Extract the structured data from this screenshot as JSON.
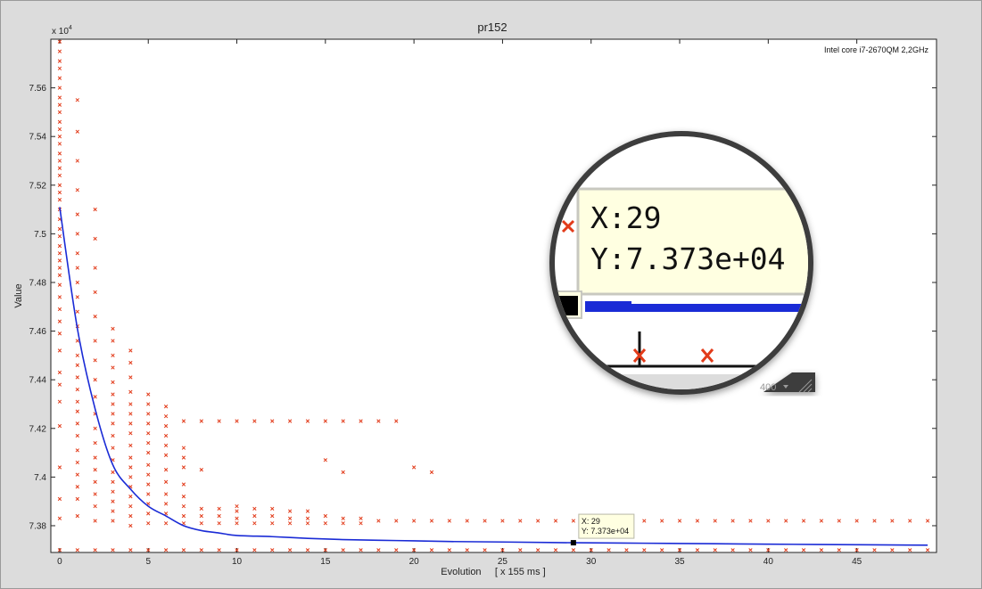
{
  "chart_data": {
    "type": "scatter",
    "title": "pr152",
    "xlabel": "Evolution     [ x 155 ms ]",
    "ylabel": "Value",
    "y_exponent_label": "x 10",
    "y_exponent_power": "4",
    "annotation": "Intel core i7-2670QM 2,2GHz",
    "xlim": [
      -0.5,
      49.5
    ],
    "ylim": [
      73690,
      75800
    ],
    "x_ticks": [
      0,
      5,
      10,
      15,
      20,
      25,
      30,
      35,
      40,
      45
    ],
    "y_ticks": [
      73800,
      74000,
      74200,
      74400,
      74600,
      74800,
      75000,
      75200,
      75400,
      75600
    ],
    "y_tick_labels": [
      "7.38",
      "7.4",
      "7.42",
      "7.44",
      "7.46",
      "7.48",
      "7.5",
      "7.52",
      "7.54",
      "7.56"
    ],
    "grid": false,
    "series": [
      {
        "role": "mean",
        "color": "#1a2bd6",
        "x": [
          0,
          1,
          2,
          3,
          4,
          5,
          6,
          7,
          8,
          9,
          10,
          12,
          14,
          16,
          18,
          20,
          22,
          25,
          29,
          33,
          37,
          40,
          45,
          49
        ],
        "y": [
          75110,
          74610,
          74280,
          74050,
          73950,
          73880,
          73840,
          73800,
          73780,
          73770,
          73760,
          73755,
          73748,
          73743,
          73740,
          73738,
          73735,
          73733,
          73730,
          73728,
          73726,
          73724,
          73722,
          73720
        ]
      },
      {
        "role": "samples",
        "color": "#e23b1a",
        "marker": "x",
        "points": [
          [
            0,
            75790
          ],
          [
            0,
            75750
          ],
          [
            0,
            75710
          ],
          [
            0,
            75680
          ],
          [
            0,
            75640
          ],
          [
            0,
            75600
          ],
          [
            0,
            75560
          ],
          [
            0,
            75530
          ],
          [
            0,
            75500
          ],
          [
            0,
            75460
          ],
          [
            0,
            75430
          ],
          [
            0,
            75400
          ],
          [
            0,
            75370
          ],
          [
            0,
            75330
          ],
          [
            0,
            75300
          ],
          [
            0,
            75270
          ],
          [
            0,
            75240
          ],
          [
            0,
            75200
          ],
          [
            0,
            75170
          ],
          [
            0,
            75140
          ],
          [
            0,
            75100
          ],
          [
            0,
            75060
          ],
          [
            0,
            75020
          ],
          [
            0,
            74990
          ],
          [
            0,
            74950
          ],
          [
            0,
            74920
          ],
          [
            0,
            74890
          ],
          [
            0,
            74860
          ],
          [
            0,
            74830
          ],
          [
            0,
            74790
          ],
          [
            0,
            74740
          ],
          [
            0,
            74690
          ],
          [
            0,
            74640
          ],
          [
            0,
            74590
          ],
          [
            0,
            74520
          ],
          [
            0,
            74430
          ],
          [
            0,
            74380
          ],
          [
            0,
            74310
          ],
          [
            0,
            74210
          ],
          [
            0,
            74040
          ],
          [
            0,
            73910
          ],
          [
            0,
            73830
          ],
          [
            0,
            73700
          ],
          [
            1,
            75550
          ],
          [
            1,
            75420
          ],
          [
            1,
            75300
          ],
          [
            1,
            75180
          ],
          [
            1,
            75080
          ],
          [
            1,
            75000
          ],
          [
            1,
            74920
          ],
          [
            1,
            74860
          ],
          [
            1,
            74800
          ],
          [
            1,
            74740
          ],
          [
            1,
            74680
          ],
          [
            1,
            74620
          ],
          [
            1,
            74560
          ],
          [
            1,
            74500
          ],
          [
            1,
            74460
          ],
          [
            1,
            74410
          ],
          [
            1,
            74360
          ],
          [
            1,
            74310
          ],
          [
            1,
            74270
          ],
          [
            1,
            74220
          ],
          [
            1,
            74170
          ],
          [
            1,
            74110
          ],
          [
            1,
            74060
          ],
          [
            1,
            74010
          ],
          [
            1,
            73960
          ],
          [
            1,
            73910
          ],
          [
            1,
            73840
          ],
          [
            1,
            73700
          ],
          [
            2,
            75100
          ],
          [
            2,
            74980
          ],
          [
            2,
            74860
          ],
          [
            2,
            74760
          ],
          [
            2,
            74660
          ],
          [
            2,
            74560
          ],
          [
            2,
            74480
          ],
          [
            2,
            74400
          ],
          [
            2,
            74330
          ],
          [
            2,
            74260
          ],
          [
            2,
            74200
          ],
          [
            2,
            74140
          ],
          [
            2,
            74080
          ],
          [
            2,
            74030
          ],
          [
            2,
            73980
          ],
          [
            2,
            73930
          ],
          [
            2,
            73880
          ],
          [
            2,
            73820
          ],
          [
            2,
            73700
          ],
          [
            3,
            74610
          ],
          [
            3,
            74560
          ],
          [
            3,
            74500
          ],
          [
            3,
            74450
          ],
          [
            3,
            74390
          ],
          [
            3,
            74340
          ],
          [
            3,
            74300
          ],
          [
            3,
            74260
          ],
          [
            3,
            74220
          ],
          [
            3,
            74170
          ],
          [
            3,
            74120
          ],
          [
            3,
            74070
          ],
          [
            3,
            74020
          ],
          [
            3,
            73980
          ],
          [
            3,
            73940
          ],
          [
            3,
            73900
          ],
          [
            3,
            73860
          ],
          [
            3,
            73820
          ],
          [
            3,
            73700
          ],
          [
            4,
            74520
          ],
          [
            4,
            74470
          ],
          [
            4,
            74410
          ],
          [
            4,
            74350
          ],
          [
            4,
            74300
          ],
          [
            4,
            74260
          ],
          [
            4,
            74220
          ],
          [
            4,
            74180
          ],
          [
            4,
            74130
          ],
          [
            4,
            74080
          ],
          [
            4,
            74040
          ],
          [
            4,
            74000
          ],
          [
            4,
            73960
          ],
          [
            4,
            73920
          ],
          [
            4,
            73880
          ],
          [
            4,
            73840
          ],
          [
            4,
            73800
          ],
          [
            4,
            73700
          ],
          [
            5,
            74340
          ],
          [
            5,
            74300
          ],
          [
            5,
            74260
          ],
          [
            5,
            74220
          ],
          [
            5,
            74180
          ],
          [
            5,
            74140
          ],
          [
            5,
            74100
          ],
          [
            5,
            74050
          ],
          [
            5,
            74010
          ],
          [
            5,
            73970
          ],
          [
            5,
            73930
          ],
          [
            5,
            73890
          ],
          [
            5,
            73850
          ],
          [
            5,
            73810
          ],
          [
            5,
            73700
          ],
          [
            6,
            74290
          ],
          [
            6,
            74250
          ],
          [
            6,
            74210
          ],
          [
            6,
            74170
          ],
          [
            6,
            74130
          ],
          [
            6,
            74090
          ],
          [
            6,
            74030
          ],
          [
            6,
            73980
          ],
          [
            6,
            73930
          ],
          [
            6,
            73890
          ],
          [
            6,
            73850
          ],
          [
            6,
            73810
          ],
          [
            6,
            73700
          ],
          [
            7,
            74230
          ],
          [
            7,
            74120
          ],
          [
            7,
            74080
          ],
          [
            7,
            74040
          ],
          [
            7,
            73970
          ],
          [
            7,
            73920
          ],
          [
            7,
            73880
          ],
          [
            7,
            73840
          ],
          [
            7,
            73810
          ],
          [
            7,
            73700
          ],
          [
            8,
            74230
          ],
          [
            8,
            74030
          ],
          [
            8,
            73870
          ],
          [
            8,
            73840
          ],
          [
            8,
            73810
          ],
          [
            8,
            73700
          ],
          [
            9,
            74230
          ],
          [
            9,
            73870
          ],
          [
            9,
            73840
          ],
          [
            9,
            73810
          ],
          [
            9,
            73700
          ],
          [
            10,
            74230
          ],
          [
            10,
            73880
          ],
          [
            10,
            73860
          ],
          [
            10,
            73830
          ],
          [
            10,
            73810
          ],
          [
            10,
            73700
          ],
          [
            11,
            74230
          ],
          [
            11,
            73870
          ],
          [
            11,
            73840
          ],
          [
            11,
            73810
          ],
          [
            11,
            73700
          ],
          [
            12,
            74230
          ],
          [
            12,
            73870
          ],
          [
            12,
            73840
          ],
          [
            12,
            73810
          ],
          [
            12,
            73700
          ],
          [
            13,
            74230
          ],
          [
            13,
            73860
          ],
          [
            13,
            73830
          ],
          [
            13,
            73810
          ],
          [
            13,
            73700
          ],
          [
            14,
            74230
          ],
          [
            14,
            73860
          ],
          [
            14,
            73830
          ],
          [
            14,
            73810
          ],
          [
            14,
            73700
          ],
          [
            15,
            74230
          ],
          [
            15,
            74070
          ],
          [
            15,
            73840
          ],
          [
            15,
            73810
          ],
          [
            15,
            73700
          ],
          [
            16,
            74230
          ],
          [
            16,
            74020
          ],
          [
            16,
            73830
          ],
          [
            16,
            73810
          ],
          [
            16,
            73700
          ],
          [
            17,
            74230
          ],
          [
            17,
            73830
          ],
          [
            17,
            73810
          ],
          [
            17,
            73700
          ],
          [
            18,
            74230
          ],
          [
            18,
            73820
          ],
          [
            18,
            73700
          ],
          [
            19,
            74230
          ],
          [
            19,
            73820
          ],
          [
            19,
            73700
          ],
          [
            20,
            74040
          ],
          [
            20,
            73820
          ],
          [
            20,
            73700
          ],
          [
            21,
            74020
          ],
          [
            21,
            73820
          ],
          [
            21,
            73700
          ],
          [
            22,
            73820
          ],
          [
            22,
            73700
          ],
          [
            23,
            73820
          ],
          [
            23,
            73700
          ],
          [
            24,
            73820
          ],
          [
            24,
            73700
          ],
          [
            25,
            73820
          ],
          [
            25,
            73700
          ],
          [
            26,
            73820
          ],
          [
            26,
            73700
          ],
          [
            27,
            73820
          ],
          [
            27,
            73700
          ],
          [
            28,
            73820
          ],
          [
            28,
            73700
          ],
          [
            29,
            73820
          ],
          [
            29,
            73700
          ],
          [
            30,
            73820
          ],
          [
            30,
            73700
          ],
          [
            31,
            73820
          ],
          [
            31,
            73700
          ],
          [
            32,
            73820
          ],
          [
            32,
            73700
          ],
          [
            33,
            73820
          ],
          [
            33,
            73700
          ],
          [
            34,
            73820
          ],
          [
            34,
            73700
          ],
          [
            35,
            73820
          ],
          [
            35,
            73700
          ],
          [
            36,
            73820
          ],
          [
            36,
            73700
          ],
          [
            37,
            73820
          ],
          [
            37,
            73700
          ],
          [
            38,
            73820
          ],
          [
            38,
            73700
          ],
          [
            39,
            73820
          ],
          [
            39,
            73700
          ],
          [
            40,
            73820
          ],
          [
            40,
            73700
          ],
          [
            41,
            73820
          ],
          [
            41,
            73700
          ],
          [
            42,
            73820
          ],
          [
            42,
            73700
          ],
          [
            43,
            73820
          ],
          [
            43,
            73700
          ],
          [
            44,
            73820
          ],
          [
            44,
            73700
          ],
          [
            45,
            73820
          ],
          [
            45,
            73700
          ],
          [
            46,
            73820
          ],
          [
            46,
            73700
          ],
          [
            47,
            73820
          ],
          [
            47,
            73700
          ],
          [
            48,
            73820
          ],
          [
            48,
            73700
          ],
          [
            49,
            73820
          ],
          [
            49,
            73700
          ]
        ]
      }
    ],
    "datatip": {
      "x": 29,
      "y": 73730,
      "line1": "X: 29",
      "line2": "Y: 7.373e+04"
    }
  },
  "magnifier": {
    "line1": "X:29",
    "line2": "Y:7.373e+04",
    "zoom_label": "400",
    "background_text": "29"
  }
}
